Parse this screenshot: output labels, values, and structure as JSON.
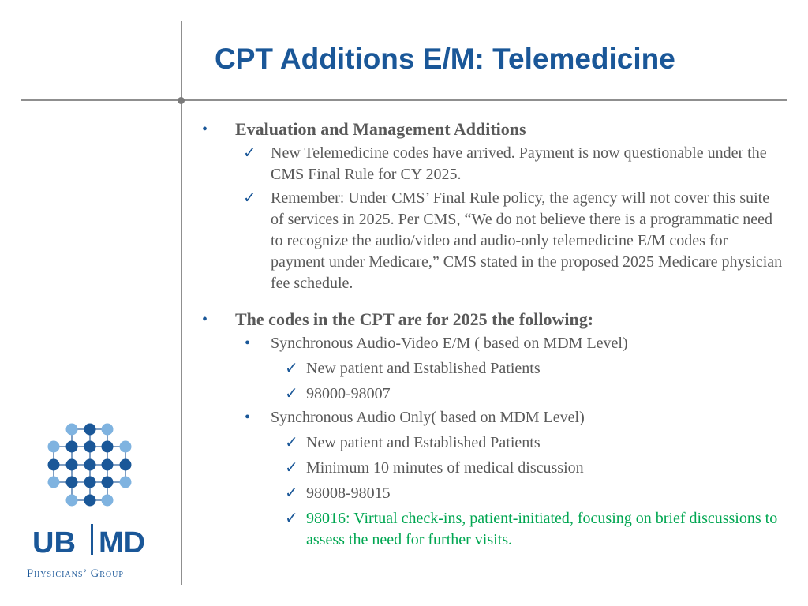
{
  "title": "CPT Additions E/M: Telemedicine",
  "colors": {
    "title": "#1a5798",
    "body": "#595959",
    "highlight": "#00a651",
    "accent": "#1a5798",
    "logo_dark": "#1a5798",
    "logo_light": "#7fb3e0"
  },
  "icons": {
    "bullet": "bullet-icon",
    "check": "checkmark-icon"
  },
  "sections": [
    {
      "heading": "Evaluation and Management Additions",
      "items": [
        "New Telemedicine codes have arrived. Payment is now questionable under the CMS Final Rule for CY 2025.",
        "Remember: Under CMS’ Final Rule policy, the agency will not cover this suite of services in 2025. Per CMS, “We do not believe there is a programmatic need to recognize the audio/video and audio-only telemedicine E/M codes for payment under Medicare,” CMS stated in the proposed 2025 Medicare physician fee schedule."
      ]
    },
    {
      "heading": "The codes in the CPT are for 2025 the following:",
      "groups": [
        {
          "label": "Synchronous Audio-Video E/M ( based on MDM Level)",
          "items": [
            "New patient and Established Patients",
            "98000-98007"
          ]
        },
        {
          "label": "Synchronous Audio Only( based on MDM Level)",
          "items": [
            "New patient and Established Patients",
            "Minimum 10 minutes of medical discussion",
            "98008-98015"
          ],
          "highlight_item": "98016: Virtual check-ins, patient-initiated, focusing on brief discussions to assess the need for further visits."
        }
      ]
    }
  ],
  "logo": {
    "brand_left": "UB",
    "brand_right": "MD",
    "subtitle": "Physicians’ Group"
  }
}
